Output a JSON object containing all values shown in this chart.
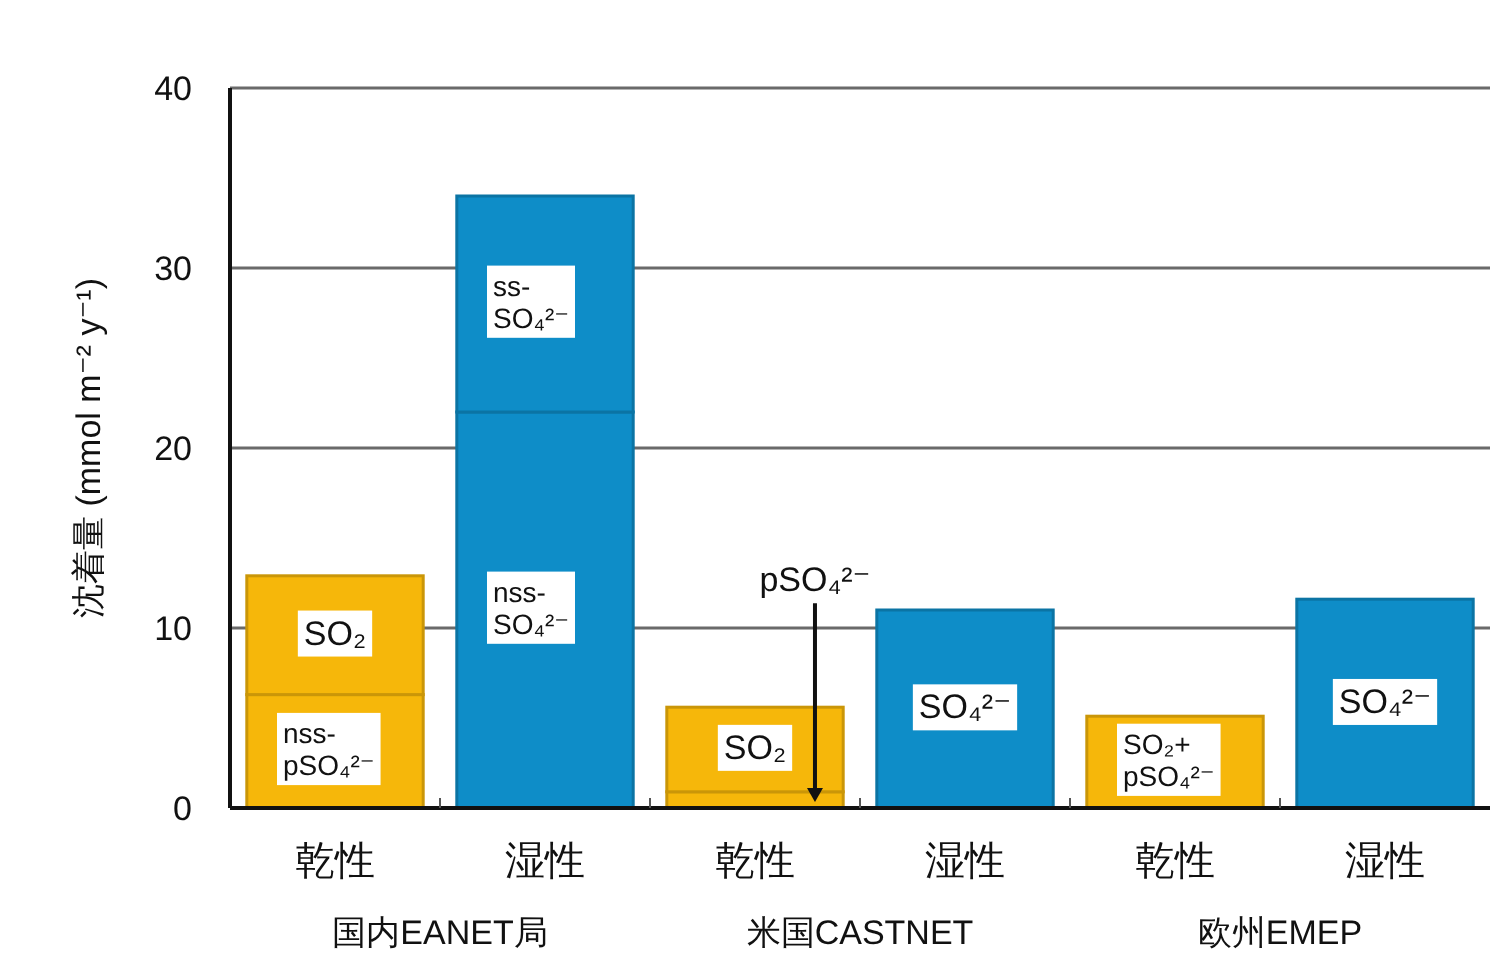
{
  "chart_data": {
    "type": "bar",
    "ylabel": "沈着量 (mmol m⁻² y⁻¹)",
    "categories": [
      "乾性",
      "湿性",
      "乾性",
      "湿性",
      "乾性",
      "湿性"
    ],
    "series": [
      {
        "values": [
          6.3,
          22,
          0.9,
          11.0,
          5.1,
          11.6
        ],
        "colors": [
          "#f6b70a",
          "#0e8dc8",
          "#f6b70a",
          "#0e8dc8",
          "#f6b70a",
          "#0e8dc8"
        ],
        "value_labels": [
          "nss-pSO₄²⁻",
          "nss-SO₄²⁻",
          "pSO₄²⁻",
          "SO₄²⁻",
          "SO₂+pSO₄²⁻",
          "SO₄²⁻"
        ]
      },
      {
        "values": [
          6.6,
          12,
          4.7,
          null,
          null,
          null
        ],
        "colors": [
          "#f6b70a",
          "#0e8dc8",
          "#f6b70a",
          null,
          null,
          null
        ],
        "value_labels": [
          "SO₂",
          "ss-SO₄²⁻",
          "SO₂",
          null,
          null,
          null
        ]
      }
    ],
    "stacked": true,
    "ylim": [
      0,
      40
    ],
    "yticks": [
      0,
      10,
      20,
      30,
      40
    ],
    "grid": "y",
    "annotations": [
      "国内EANET局",
      "米国CASTNET",
      "欧州EMEP"
    ]
  }
}
